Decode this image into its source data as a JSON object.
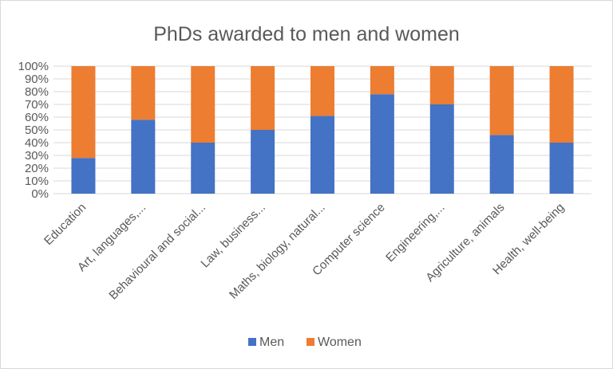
{
  "chart_data": {
    "type": "bar",
    "stacked": true,
    "title": "PhDs awarded to men and women",
    "categories": [
      "Education",
      "Art, languages,...",
      "Behavioural and social...",
      "Law, business...",
      "Maths, biology, natural...",
      "Computer science",
      "Engineering,...",
      "Agriculture, animals",
      "Health, well-being"
    ],
    "series": [
      {
        "name": "Men",
        "color": "#4472c4",
        "values": [
          28,
          58,
          40,
          50,
          61,
          78,
          70,
          46,
          40
        ]
      },
      {
        "name": "Women",
        "color": "#ed7d31",
        "values": [
          72,
          42,
          60,
          50,
          39,
          22,
          30,
          54,
          60
        ]
      }
    ],
    "yticks": [
      "0%",
      "10%",
      "20%",
      "30%",
      "40%",
      "50%",
      "60%",
      "70%",
      "80%",
      "90%",
      "100%"
    ],
    "ylim": [
      0,
      100
    ],
    "grid": true,
    "legend": "bottom"
  }
}
